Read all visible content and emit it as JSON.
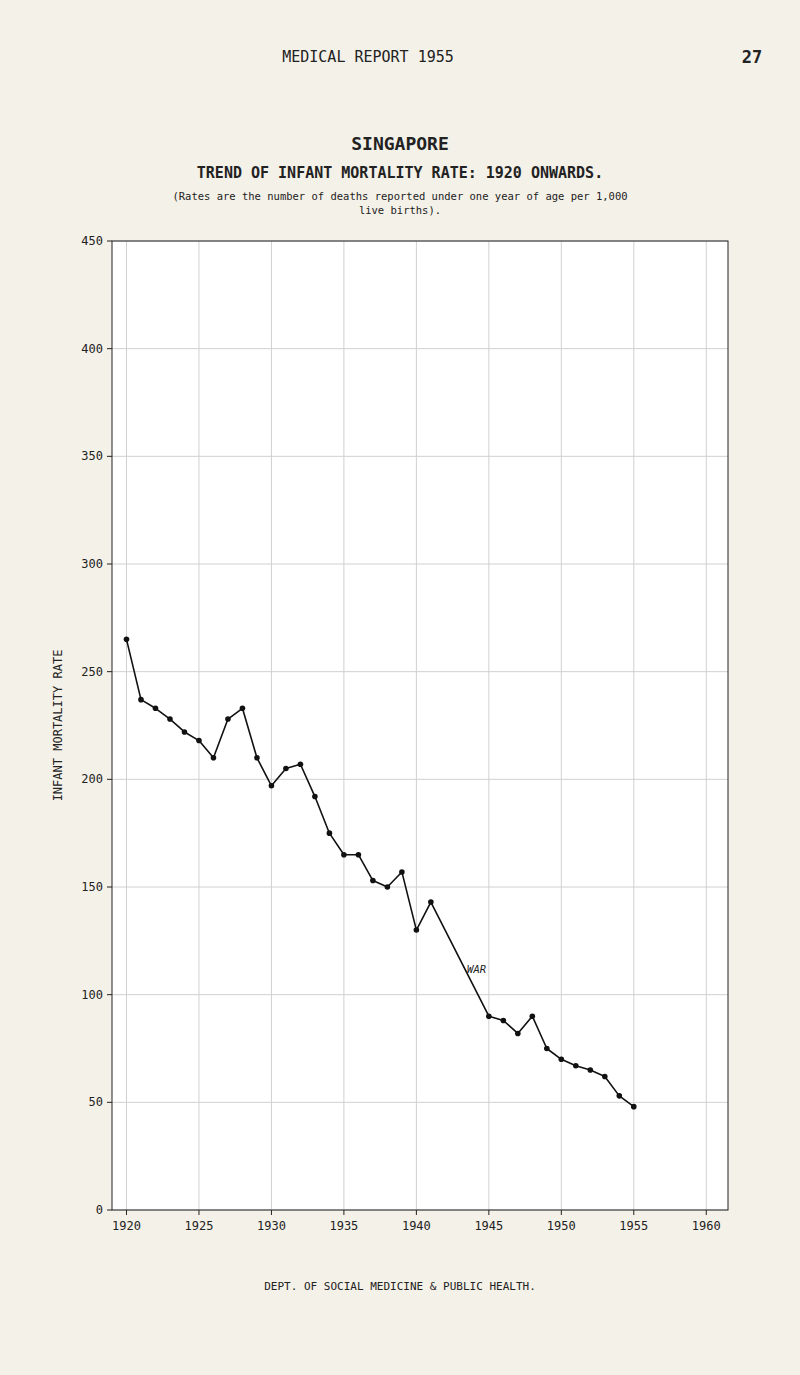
{
  "chart_data": {
    "type": "line",
    "header": "MEDICAL REPORT 1955",
    "page_number": "27",
    "title": [
      "SINGAPORE",
      "TREND OF INFANT MORTALITY RATE:  1920 ONWARDS."
    ],
    "subtitle": "(Rates are the number of deaths reported under one year of age per 1,000\nlive births).",
    "y_label": "INFANT  MORTALITY  RATE",
    "footer": "DEPT. OF SOCIAL MEDICINE  &  PUBLIC HEALTH.",
    "x": [
      1920,
      1921,
      1922,
      1923,
      1924,
      1925,
      1926,
      1927,
      1928,
      1929,
      1930,
      1931,
      1932,
      1933,
      1934,
      1935,
      1936,
      1937,
      1938,
      1939,
      1940,
      1941,
      1945,
      1946,
      1947,
      1948,
      1949,
      1950,
      1951,
      1952,
      1953,
      1954,
      1955
    ],
    "values": [
      265,
      237,
      233,
      228,
      222,
      218,
      210,
      228,
      233,
      210,
      197,
      205,
      207,
      192,
      175,
      165,
      165,
      153,
      150,
      157,
      130,
      143,
      90,
      88,
      82,
      90,
      75,
      70,
      67,
      65,
      62,
      53,
      48
    ],
    "color": "#111111",
    "marker": "circle",
    "line_style": "solid",
    "annotations": [
      {
        "text": "WAR",
        "x": 1943.5,
        "y": 112
      }
    ],
    "xlim": [
      1919.0,
      1961.5
    ],
    "ylim": [
      0,
      450
    ],
    "xticks": [
      1920,
      1925,
      1930,
      1935,
      1940,
      1945,
      1950,
      1955,
      1960
    ],
    "yticks": [
      0,
      50,
      100,
      150,
      200,
      250,
      300,
      350,
      400,
      450
    ],
    "grid": true
  }
}
